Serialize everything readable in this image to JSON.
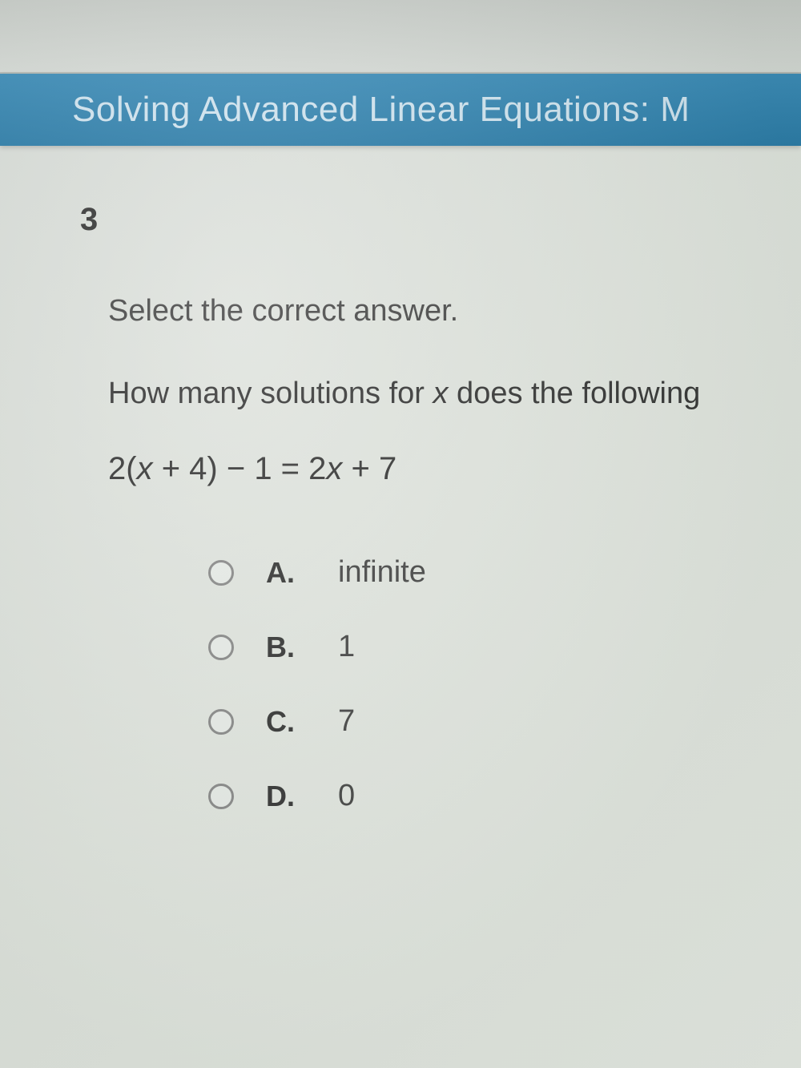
{
  "header": {
    "title": "Solving Advanced Linear Equations: M",
    "background_color": "#2a7ba8",
    "text_color": "#d0e4f0",
    "font_size": 44
  },
  "question": {
    "number": "3",
    "instruction": "Select the correct answer.",
    "prompt_prefix": "How many solutions for ",
    "prompt_var": "x",
    "prompt_suffix": " does the following",
    "equation_parts": {
      "p1": "2(",
      "v1": "x",
      "p2": " + 4) − 1 = 2",
      "v2": "x",
      "p3": " + 7"
    }
  },
  "options": [
    {
      "letter": "A.",
      "text": "infinite"
    },
    {
      "letter": "B.",
      "text": "1"
    },
    {
      "letter": "C.",
      "text": "7"
    },
    {
      "letter": "D.",
      "text": "0"
    }
  ],
  "styling": {
    "body_background": "#e2e6e0",
    "text_color": "#3a3a3a",
    "radio_border_color": "#888",
    "question_font_size": 38,
    "option_font_size": 38,
    "number_font_size": 40
  }
}
